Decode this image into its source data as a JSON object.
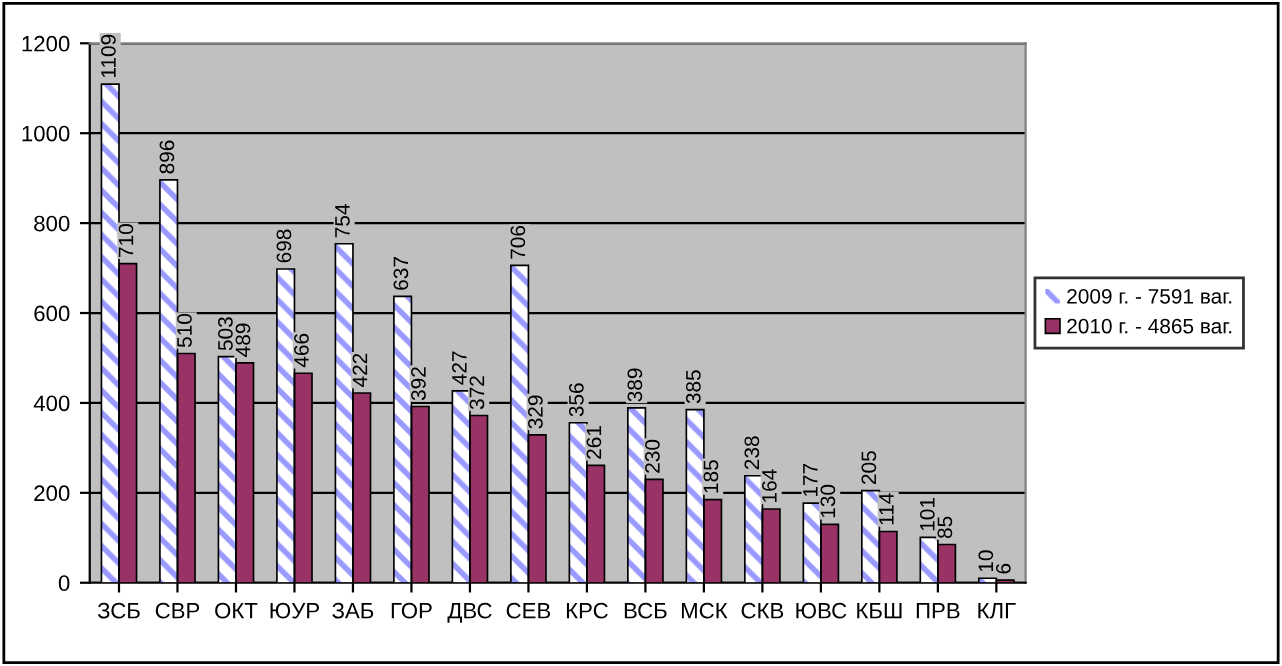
{
  "chart_data": {
    "type": "bar",
    "categories": [
      "ЗСБ",
      "СВР",
      "ОКТ",
      "ЮУР",
      "ЗАБ",
      "ГОР",
      "ДВС",
      "СЕВ",
      "КРС",
      "ВСБ",
      "МСК",
      "СКВ",
      "ЮВС",
      "КБШ",
      "ПРВ",
      "КЛГ"
    ],
    "series": [
      {
        "name": "2009 г. - 7591 ваг.",
        "color": "#9999ff",
        "values": [
          1109,
          896,
          503,
          698,
          754,
          637,
          427,
          706,
          356,
          389,
          385,
          238,
          177,
          205,
          101,
          10
        ]
      },
      {
        "name": "2010 г. - 4865 ваг.",
        "color": "#993366",
        "values": [
          710,
          510,
          489,
          466,
          422,
          392,
          372,
          329,
          261,
          230,
          185,
          164,
          130,
          114,
          85,
          6
        ]
      }
    ],
    "ylim": [
      0,
      1200
    ],
    "yticks": [
      0,
      200,
      400,
      600,
      800,
      1000,
      1200
    ],
    "grid": "y",
    "legend": "right",
    "data_labels": true
  }
}
